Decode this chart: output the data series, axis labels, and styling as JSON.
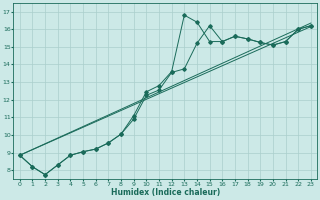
{
  "xlabel": "Humidex (Indice chaleur)",
  "bg_color": "#cce9e7",
  "grid_color": "#aacfcc",
  "line_color": "#1a6b5a",
  "xlim": [
    -0.5,
    23.5
  ],
  "ylim": [
    7.5,
    17.5
  ],
  "xticks": [
    0,
    1,
    2,
    3,
    4,
    5,
    6,
    7,
    8,
    9,
    10,
    11,
    12,
    13,
    14,
    15,
    16,
    17,
    18,
    19,
    20,
    21,
    22,
    23
  ],
  "yticks": [
    8,
    9,
    10,
    11,
    12,
    13,
    14,
    15,
    16,
    17
  ],
  "line1_x": [
    0,
    1,
    2,
    3,
    4,
    5,
    6,
    7,
    8,
    9,
    10,
    11,
    12,
    13,
    14,
    15,
    16,
    17,
    18,
    19,
    20,
    21,
    22,
    23
  ],
  "line1_y": [
    8.85,
    8.2,
    7.75,
    8.3,
    8.85,
    9.05,
    9.2,
    9.55,
    10.05,
    11.1,
    12.45,
    12.8,
    13.6,
    16.8,
    16.4,
    15.3,
    15.3,
    15.6,
    15.45,
    15.25,
    15.1,
    15.3,
    16.0,
    16.2
  ],
  "line2_x": [
    0,
    1,
    2,
    3,
    4,
    5,
    6,
    7,
    8,
    9,
    10,
    11,
    12,
    13,
    14,
    15,
    16,
    17,
    18,
    19,
    20,
    21,
    22,
    23
  ],
  "line2_y": [
    8.85,
    8.2,
    7.75,
    8.3,
    8.85,
    9.05,
    9.2,
    9.55,
    10.05,
    10.9,
    12.25,
    12.55,
    13.55,
    13.75,
    15.2,
    16.2,
    15.3,
    15.6,
    15.45,
    15.25,
    15.1,
    15.3,
    16.0,
    16.2
  ],
  "line3_x": [
    0,
    23
  ],
  "line3_y": [
    8.85,
    16.15
  ],
  "line4_x": [
    0,
    23
  ],
  "line4_y": [
    8.85,
    16.35
  ]
}
